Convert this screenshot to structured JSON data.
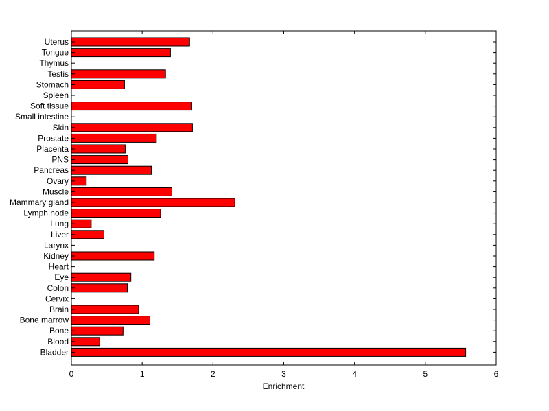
{
  "chart_data": {
    "type": "bar",
    "orientation": "horizontal",
    "title": "",
    "xlabel": "Enrichment",
    "ylabel": "",
    "xlim": [
      0,
      6
    ],
    "xticks": [
      "0",
      "1",
      "2",
      "3",
      "4",
      "5",
      "6"
    ],
    "grid": false,
    "bar_color": "#ff0000",
    "categories": [
      "Uterus",
      "Tongue",
      "Thymus",
      "Testis",
      "Stomach",
      "Spleen",
      "Soft tissue",
      "Small intestine",
      "Skin",
      "Prostate",
      "Placenta",
      "PNS",
      "Pancreas",
      "Ovary",
      "Muscle",
      "Mammary gland",
      "Lymph node",
      "Lung",
      "Liver",
      "Larynx",
      "Kidney",
      "Heart",
      "Eye",
      "Colon",
      "Cervix",
      "Brain",
      "Bone marrow",
      "Bone",
      "Blood",
      "Bladder"
    ],
    "values": [
      1.67,
      1.4,
      0,
      1.33,
      0.75,
      0,
      1.7,
      0,
      1.71,
      1.2,
      0.76,
      0.8,
      1.13,
      0.21,
      1.42,
      2.31,
      1.26,
      0.28,
      0.46,
      0,
      1.17,
      0,
      0.84,
      0.79,
      0,
      0.95,
      1.11,
      0.73,
      0.4,
      5.57
    ]
  }
}
